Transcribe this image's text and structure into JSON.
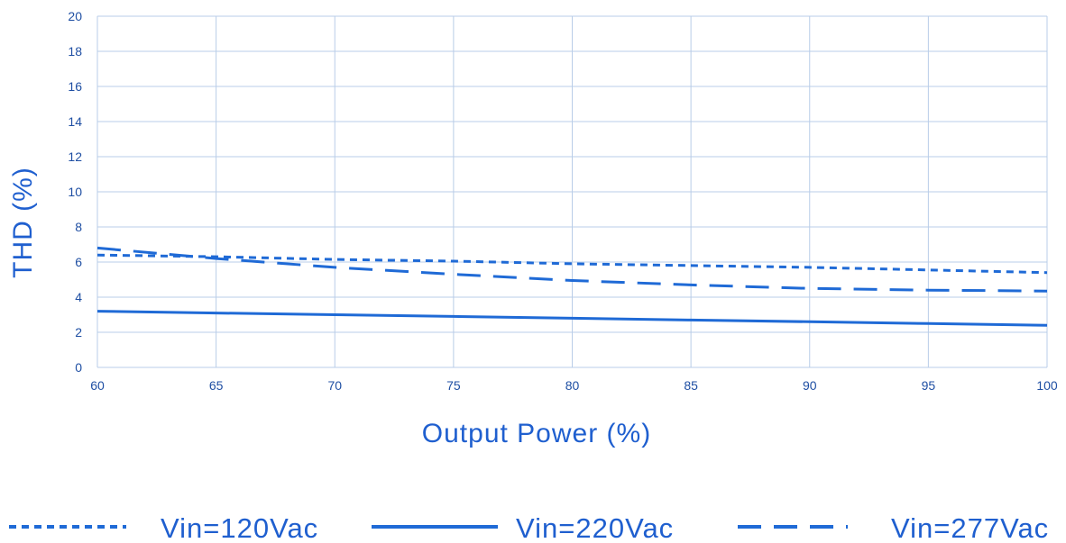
{
  "chart_data": {
    "type": "line",
    "title": "",
    "xlabel": "Output Power (%)",
    "ylabel": "THD (%)",
    "xlim": [
      60,
      100
    ],
    "ylim": [
      0,
      20
    ],
    "x_ticks": [
      "60",
      "65",
      "70",
      "75",
      "80",
      "85",
      "90",
      "95",
      "100"
    ],
    "y_ticks": [
      "0",
      "2",
      "4",
      "6",
      "8",
      "10",
      "12",
      "14",
      "16",
      "18",
      "20"
    ],
    "grid": true,
    "legend_position": "bottom",
    "series_color": "#1f6ad6",
    "series": [
      {
        "name": "Vin=120Vac",
        "line_style": "dotted",
        "x": [
          60,
          65,
          70,
          75,
          80,
          85,
          90,
          95,
          100
        ],
        "values": [
          6.4,
          6.3,
          6.15,
          6.05,
          5.9,
          5.8,
          5.7,
          5.55,
          5.4
        ]
      },
      {
        "name": "Vin=220Vac",
        "line_style": "solid",
        "x": [
          60,
          65,
          70,
          75,
          80,
          85,
          90,
          95,
          100
        ],
        "values": [
          3.2,
          3.1,
          3.0,
          2.9,
          2.8,
          2.7,
          2.6,
          2.5,
          2.4
        ]
      },
      {
        "name": "Vin=277Vac",
        "line_style": "dashed",
        "x": [
          60,
          65,
          70,
          75,
          80,
          85,
          90,
          95,
          100
        ],
        "values": [
          6.8,
          6.2,
          5.7,
          5.3,
          4.95,
          4.7,
          4.5,
          4.4,
          4.35
        ]
      }
    ]
  }
}
